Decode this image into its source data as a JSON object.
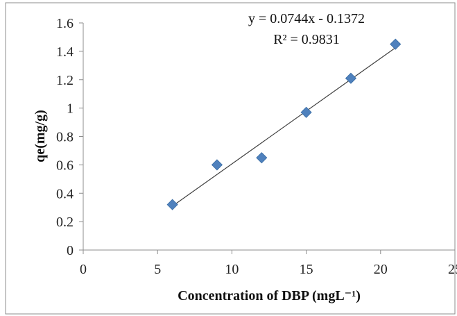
{
  "chart_data": {
    "type": "scatter",
    "xlabel": "Concentration of DBP (mgL⁻¹)",
    "ylabel": "qe(mg/g)",
    "xlim": [
      0,
      25
    ],
    "ylim": [
      0,
      1.6
    ],
    "x_ticks": [
      "0",
      "5",
      "10",
      "15",
      "20",
      "25"
    ],
    "y_ticks": [
      "0",
      "0.2",
      "0.4",
      "0.6",
      "0.8",
      "1",
      "1.2",
      "1.4",
      "1.6"
    ],
    "grid": false,
    "legend": "none",
    "marker_color": "#4f81bd",
    "trendline_color": "#404040",
    "series": [
      {
        "x": [
          6,
          9,
          12,
          15,
          18,
          21
        ],
        "y": [
          0.32,
          0.6,
          0.65,
          0.97,
          1.21,
          1.45
        ]
      }
    ],
    "trendline": {
      "slope": 0.0744,
      "intercept": -0.1372,
      "equation": "y = 0.0744x - 0.1372",
      "r_squared_text": "R² = 0.9831"
    }
  }
}
